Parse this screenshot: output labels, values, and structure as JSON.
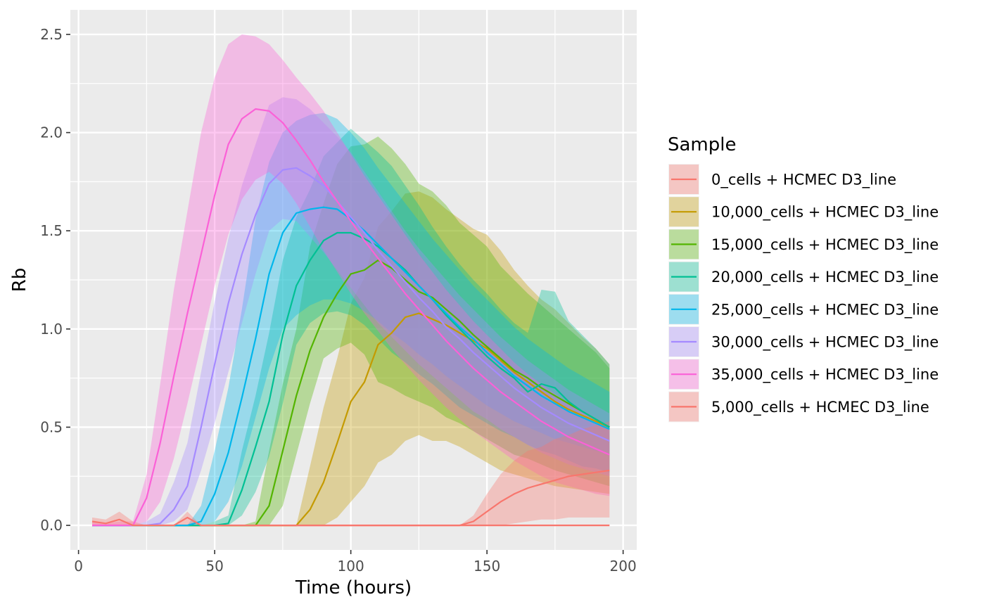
{
  "chart_data": {
    "type": "area",
    "xlabel": "Time (hours)",
    "ylabel": "Rb",
    "xlim": [
      -3,
      205
    ],
    "ylim": [
      -0.125,
      2.625
    ],
    "xticks": [
      0,
      50,
      100,
      150,
      200
    ],
    "xtick_labels": [
      "0",
      "50",
      "100",
      "150",
      "200"
    ],
    "yticks": [
      0.0,
      0.5,
      1.0,
      1.5,
      2.0,
      2.5
    ],
    "ytick_labels": [
      "0.0",
      "0.5",
      "1.0",
      "1.5",
      "2.0",
      "2.5"
    ],
    "grid": true,
    "background": "#EBEBEB",
    "legend": {
      "title": "Sample",
      "placement": "right"
    },
    "x": [
      5,
      10,
      15,
      20,
      25,
      30,
      35,
      40,
      45,
      50,
      55,
      60,
      65,
      70,
      75,
      80,
      85,
      90,
      95,
      100,
      105,
      110,
      115,
      120,
      125,
      130,
      135,
      140,
      145,
      150,
      155,
      160,
      165,
      170,
      175,
      180,
      185,
      190,
      195
    ],
    "series": [
      {
        "name": "0_cells + HCMEC D3_line",
        "color": "#F8766D",
        "mean": [
          0,
          0,
          0,
          0,
          0,
          0,
          0,
          0,
          0,
          0,
          0,
          0,
          0,
          0,
          0,
          0,
          0,
          0,
          0,
          0,
          0,
          0,
          0,
          0,
          0,
          0,
          0,
          0,
          0,
          0,
          0,
          0,
          0,
          0,
          0,
          0,
          0,
          0,
          0
        ],
        "lower": [
          0,
          0,
          0,
          0,
          0,
          0,
          0,
          0,
          0,
          0,
          0,
          0,
          0,
          0,
          0,
          0,
          0,
          0,
          0,
          0,
          0,
          0,
          0,
          0,
          0,
          0,
          0,
          0,
          0,
          0,
          0,
          0,
          0,
          0,
          0,
          0,
          0,
          0,
          0
        ],
        "upper": [
          0.005,
          0.005,
          0.005,
          0.005,
          0.005,
          0.005,
          0.005,
          0.005,
          0.005,
          0.005,
          0.005,
          0.005,
          0.005,
          0.005,
          0.005,
          0.005,
          0.005,
          0.005,
          0.005,
          0.005,
          0.005,
          0.005,
          0.005,
          0.005,
          0.005,
          0.005,
          0.005,
          0.005,
          0.005,
          0.005,
          0.005,
          0.005,
          0.005,
          0.005,
          0.005,
          0.005,
          0.005,
          0.005,
          0.005
        ]
      },
      {
        "name": "10,000_cells + HCMEC D3_line",
        "color": "#C49A00",
        "mean": [
          0,
          0,
          0,
          0,
          0,
          0,
          0,
          0,
          0,
          0,
          0,
          0,
          0,
          0,
          0,
          0,
          0.08,
          0.22,
          0.42,
          0.63,
          0.73,
          0.92,
          0.98,
          1.06,
          1.08,
          1.05,
          1.02,
          0.98,
          0.94,
          0.9,
          0.84,
          0.78,
          0.73,
          0.68,
          0.63,
          0.59,
          0.56,
          0.53,
          0.5
        ],
        "lower": [
          0,
          0,
          0,
          0,
          0,
          0,
          0,
          0,
          0,
          0,
          0,
          0,
          0,
          0,
          0,
          0,
          0,
          0,
          0.04,
          0.12,
          0.2,
          0.32,
          0.36,
          0.43,
          0.46,
          0.43,
          0.43,
          0.4,
          0.36,
          0.32,
          0.28,
          0.26,
          0.24,
          0.22,
          0.2,
          0.19,
          0.18,
          0.17,
          0.16
        ],
        "upper": [
          0,
          0,
          0,
          0,
          0,
          0,
          0,
          0,
          0,
          0,
          0,
          0,
          0,
          0,
          0,
          0,
          0.3,
          0.6,
          0.85,
          1.13,
          1.26,
          1.52,
          1.6,
          1.69,
          1.7,
          1.67,
          1.61,
          1.56,
          1.51,
          1.48,
          1.4,
          1.3,
          1.22,
          1.15,
          1.1,
          1.03,
          0.96,
          0.9,
          0.82
        ]
      },
      {
        "name": "15,000_cells + HCMEC D3_line",
        "color": "#53B400",
        "mean": [
          0,
          0,
          0,
          0,
          0,
          0,
          0,
          0,
          0,
          0,
          0,
          0,
          0,
          0.1,
          0.38,
          0.66,
          0.89,
          1.06,
          1.18,
          1.28,
          1.3,
          1.35,
          1.31,
          1.25,
          1.19,
          1.16,
          1.1,
          1.04,
          0.97,
          0.91,
          0.85,
          0.79,
          0.75,
          0.7,
          0.66,
          0.62,
          0.58,
          0.54,
          0.5
        ],
        "lower": [
          0,
          0,
          0,
          0,
          0,
          0,
          0,
          0,
          0,
          0,
          0,
          0,
          0,
          0,
          0.1,
          0.36,
          0.62,
          0.85,
          0.9,
          0.93,
          0.87,
          0.73,
          0.7,
          0.66,
          0.63,
          0.6,
          0.55,
          0.52,
          0.48,
          0.44,
          0.4,
          0.36,
          0.34,
          0.31,
          0.28,
          0.26,
          0.24,
          0.22,
          0.2
        ],
        "upper": [
          0,
          0,
          0,
          0,
          0,
          0,
          0,
          0,
          0,
          0,
          0,
          0,
          0.02,
          0.38,
          0.72,
          1.0,
          1.42,
          1.64,
          1.84,
          1.93,
          1.94,
          1.98,
          1.92,
          1.84,
          1.74,
          1.7,
          1.63,
          1.54,
          1.48,
          1.42,
          1.32,
          1.25,
          1.18,
          1.12,
          1.06,
          1.0,
          0.94,
          0.88,
          0.8
        ]
      },
      {
        "name": "20,000_cells + HCMEC D3_line",
        "color": "#00C094",
        "mean": [
          0,
          0,
          0,
          0,
          0,
          0,
          0,
          0,
          0,
          0,
          0.01,
          0.18,
          0.4,
          0.63,
          0.97,
          1.22,
          1.35,
          1.45,
          1.49,
          1.49,
          1.46,
          1.42,
          1.36,
          1.3,
          1.22,
          1.15,
          1.07,
          1.0,
          0.93,
          0.86,
          0.8,
          0.75,
          0.68,
          0.72,
          0.7,
          0.63,
          0.58,
          0.54,
          0.5
        ],
        "lower": [
          0,
          0,
          0,
          0,
          0,
          0,
          0,
          0,
          0,
          0,
          0,
          0.05,
          0.17,
          0.35,
          0.62,
          0.92,
          1.03,
          1.08,
          1.09,
          1.07,
          1.02,
          0.95,
          0.88,
          0.83,
          0.77,
          0.72,
          0.66,
          0.6,
          0.56,
          0.52,
          0.48,
          0.45,
          0.41,
          0.38,
          0.36,
          0.33,
          0.3,
          0.29,
          0.27
        ],
        "upper": [
          0,
          0,
          0,
          0,
          0,
          0,
          0,
          0,
          0,
          0.02,
          0.05,
          0.38,
          0.66,
          0.98,
          1.35,
          1.57,
          1.71,
          1.88,
          1.95,
          2.02,
          1.96,
          1.9,
          1.83,
          1.73,
          1.63,
          1.52,
          1.42,
          1.33,
          1.25,
          1.18,
          1.1,
          1.03,
          0.98,
          1.2,
          1.19,
          1.04,
          0.97,
          0.9,
          0.82
        ]
      },
      {
        "name": "25,000_cells + HCMEC D3_line",
        "color": "#00B6EB",
        "mean": [
          0,
          0,
          0,
          0,
          0,
          0,
          0,
          0,
          0.02,
          0.16,
          0.37,
          0.65,
          0.95,
          1.28,
          1.49,
          1.59,
          1.61,
          1.62,
          1.61,
          1.56,
          1.5,
          1.43,
          1.36,
          1.29,
          1.22,
          1.15,
          1.08,
          1.01,
          0.95,
          0.88,
          0.82,
          0.76,
          0.71,
          0.66,
          0.62,
          0.58,
          0.55,
          0.52,
          0.49
        ],
        "lower": [
          0,
          0,
          0,
          0,
          0,
          0,
          0,
          0,
          0,
          0.02,
          0.12,
          0.3,
          0.55,
          0.8,
          1.0,
          1.07,
          1.12,
          1.15,
          1.15,
          1.13,
          1.09,
          1.04,
          0.98,
          0.93,
          0.87,
          0.82,
          0.76,
          0.71,
          0.66,
          0.61,
          0.57,
          0.53,
          0.5,
          0.47,
          0.44,
          0.42,
          0.4,
          0.38,
          0.36
        ],
        "upper": [
          0,
          0,
          0,
          0,
          0,
          0,
          0,
          0,
          0.1,
          0.38,
          0.7,
          1.1,
          1.56,
          1.85,
          2.0,
          2.06,
          2.09,
          2.1,
          2.07,
          2.0,
          1.92,
          1.82,
          1.73,
          1.64,
          1.55,
          1.46,
          1.38,
          1.3,
          1.22,
          1.15,
          1.08,
          1.01,
          0.95,
          0.9,
          0.85,
          0.8,
          0.76,
          0.72,
          0.68
        ]
      },
      {
        "name": "30,000_cells + HCMEC D3_line",
        "color": "#A58AFF",
        "mean": [
          0,
          0,
          0,
          0,
          0,
          0.01,
          0.08,
          0.2,
          0.5,
          0.82,
          1.13,
          1.38,
          1.58,
          1.74,
          1.81,
          1.82,
          1.78,
          1.73,
          1.65,
          1.57,
          1.49,
          1.4,
          1.32,
          1.24,
          1.16,
          1.09,
          1.01,
          0.95,
          0.88,
          0.82,
          0.76,
          0.7,
          0.65,
          0.6,
          0.56,
          0.52,
          0.49,
          0.46,
          0.43
        ],
        "lower": [
          0,
          0,
          0,
          0,
          0,
          0,
          0.02,
          0.08,
          0.28,
          0.52,
          0.78,
          1.03,
          1.28,
          1.5,
          1.56,
          1.55,
          1.47,
          1.39,
          1.3,
          1.21,
          1.12,
          1.03,
          0.96,
          0.89,
          0.82,
          0.76,
          0.7,
          0.64,
          0.58,
          0.54,
          0.49,
          0.45,
          0.41,
          0.37,
          0.34,
          0.31,
          0.29,
          0.27,
          0.25
        ],
        "upper": [
          0,
          0,
          0,
          0,
          0.02,
          0.06,
          0.22,
          0.42,
          0.78,
          1.14,
          1.46,
          1.73,
          1.94,
          2.14,
          2.18,
          2.17,
          2.12,
          2.05,
          1.98,
          1.9,
          1.8,
          1.7,
          1.6,
          1.5,
          1.41,
          1.33,
          1.25,
          1.17,
          1.1,
          1.03,
          0.96,
          0.9,
          0.84,
          0.79,
          0.74,
          0.69,
          0.65,
          0.61,
          0.57
        ]
      },
      {
        "name": "35,000_cells + HCMEC D3_line",
        "color": "#FB61D7",
        "mean": [
          0,
          0,
          0,
          0,
          0.14,
          0.42,
          0.76,
          1.08,
          1.38,
          1.68,
          1.94,
          2.07,
          2.12,
          2.11,
          2.05,
          1.96,
          1.86,
          1.75,
          1.65,
          1.55,
          1.45,
          1.36,
          1.27,
          1.18,
          1.1,
          1.02,
          0.94,
          0.87,
          0.8,
          0.74,
          0.68,
          0.63,
          0.58,
          0.53,
          0.49,
          0.45,
          0.42,
          0.39,
          0.36
        ],
        "lower": [
          0,
          0,
          0,
          0,
          0.02,
          0.12,
          0.34,
          0.62,
          0.92,
          1.22,
          1.48,
          1.66,
          1.76,
          1.8,
          1.74,
          1.64,
          1.52,
          1.4,
          1.29,
          1.18,
          1.08,
          0.99,
          0.9,
          0.82,
          0.74,
          0.67,
          0.6,
          0.54,
          0.48,
          0.43,
          0.38,
          0.33,
          0.29,
          0.25,
          0.22,
          0.2,
          0.18,
          0.16,
          0.15
        ],
        "upper": [
          0.02,
          0.01,
          0.02,
          0.02,
          0.26,
          0.72,
          1.2,
          1.6,
          2.0,
          2.28,
          2.45,
          2.5,
          2.49,
          2.45,
          2.37,
          2.28,
          2.2,
          2.11,
          2.0,
          1.89,
          1.78,
          1.68,
          1.58,
          1.48,
          1.38,
          1.29,
          1.2,
          1.12,
          1.04,
          0.97,
          0.9,
          0.83,
          0.77,
          0.72,
          0.67,
          0.62,
          0.58,
          0.54,
          0.5
        ]
      },
      {
        "name": "5,000_cells + HCMEC D3_line",
        "color": "#F8766D",
        "mean": [
          0.02,
          0.01,
          0.03,
          0.0,
          0.0,
          0.0,
          0.0,
          0.04,
          0.0,
          0.0,
          0.0,
          0.0,
          0.0,
          0.0,
          0.0,
          0.0,
          0.0,
          0.0,
          0.0,
          0.0,
          0.0,
          0.0,
          0.0,
          0.0,
          0.0,
          0.0,
          0.0,
          0.0,
          0.02,
          0.07,
          0.12,
          0.16,
          0.19,
          0.21,
          0.23,
          0.25,
          0.26,
          0.27,
          0.28
        ],
        "lower": [
          0,
          0,
          0,
          0,
          0,
          0,
          0,
          0,
          0,
          0,
          0,
          0,
          0,
          0,
          0,
          0,
          0,
          0,
          0,
          0,
          0,
          0,
          0,
          0,
          0,
          0,
          0,
          0,
          0,
          0,
          0,
          0.01,
          0.02,
          0.03,
          0.03,
          0.04,
          0.04,
          0.04,
          0.04
        ],
        "upper": [
          0.04,
          0.03,
          0.07,
          0.02,
          0.0,
          0.0,
          0.0,
          0.07,
          0.0,
          0.0,
          0.0,
          0.0,
          0.0,
          0.0,
          0.0,
          0.0,
          0.0,
          0.0,
          0.0,
          0.0,
          0.0,
          0.0,
          0.0,
          0.0,
          0.0,
          0.0,
          0.0,
          0.0,
          0.05,
          0.16,
          0.26,
          0.33,
          0.38,
          0.4,
          0.44,
          0.46,
          0.49,
          0.51,
          0.53
        ]
      }
    ]
  }
}
